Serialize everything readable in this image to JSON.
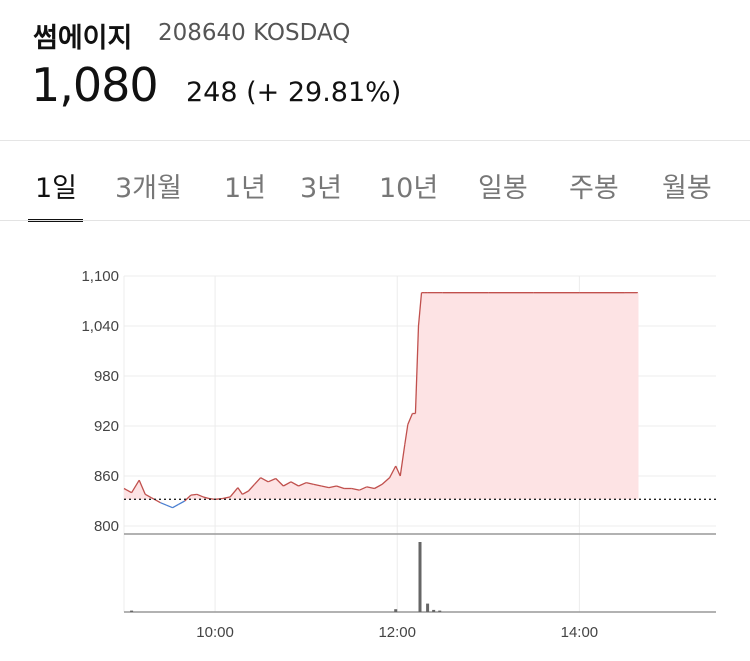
{
  "stock": {
    "name": "썸에이지",
    "code_market": "208640 KOSDAQ",
    "price": "1,080",
    "change": "248 (+ 29.81%)"
  },
  "tabs": [
    {
      "label": "1일",
      "active": true
    },
    {
      "label": "3개월",
      "active": false
    },
    {
      "label": "1년",
      "active": false
    },
    {
      "label": "3년",
      "active": false
    },
    {
      "label": "10년",
      "active": false
    },
    {
      "label": "일봉",
      "active": false
    },
    {
      "label": "주봉",
      "active": false
    },
    {
      "label": "월봉",
      "active": false
    }
  ],
  "colors": {
    "up_line": "#c0504d",
    "up_fill": "#fde3e4",
    "down_line": "#4a7fd1",
    "grid": "#ececec",
    "volume_bar": "#666666"
  },
  "chart_data": {
    "type": "area",
    "y_ticks": [
      "1,100",
      "1,040",
      "980",
      "920",
      "860",
      "800"
    ],
    "y_tick_values": [
      1100,
      1040,
      980,
      920,
      860,
      800
    ],
    "ylim": [
      800,
      1100
    ],
    "x_ticks": [
      "10:00",
      "12:00",
      "14:00"
    ],
    "x_tick_values": [
      "10:00",
      "12:00",
      "14:00"
    ],
    "xlim": [
      "09:00",
      "15:30"
    ],
    "reference_price": 832,
    "reference_line_style": "dotted",
    "series": [
      {
        "x": [
          "09:00",
          "09:05",
          "09:10",
          "09:14",
          "09:18",
          "09:20",
          "09:24",
          "09:28",
          "09:32",
          "09:36",
          "09:40",
          "09:44",
          "09:48",
          "09:52",
          "09:56",
          "10:00",
          "10:05",
          "10:10",
          "10:15",
          "10:18",
          "10:22",
          "10:26",
          "10:30",
          "10:35",
          "10:40",
          "10:45",
          "10:50",
          "10:55",
          "11:00",
          "11:05",
          "11:10",
          "11:15",
          "11:20",
          "11:25",
          "11:30",
          "11:35",
          "11:40",
          "11:45",
          "11:50",
          "11:55",
          "11:59",
          "12:02",
          "12:05",
          "12:07",
          "12:10",
          "12:12",
          "12:14",
          "12:16",
          "12:18",
          "12:20",
          "12:30",
          "13:00",
          "13:30",
          "14:00",
          "14:30",
          "15:00",
          "15:30"
        ],
        "y": [
          845,
          840,
          855,
          838,
          834,
          832,
          828,
          825,
          822,
          826,
          830,
          837,
          838,
          835,
          833,
          832,
          833,
          835,
          846,
          838,
          842,
          850,
          858,
          853,
          857,
          848,
          853,
          848,
          852,
          850,
          848,
          846,
          848,
          845,
          845,
          843,
          847,
          845,
          850,
          858,
          872,
          860,
          898,
          922,
          935,
          935,
          1040,
          1080,
          1080,
          1080,
          1080,
          1080,
          1080,
          1080,
          1080,
          1080,
          1080
        ]
      }
    ],
    "volume": {
      "x": [
        "09:05",
        "11:59",
        "12:15",
        "12:20",
        "12:24",
        "12:28"
      ],
      "values": [
        2,
        4,
        100,
        12,
        3,
        2
      ]
    }
  }
}
